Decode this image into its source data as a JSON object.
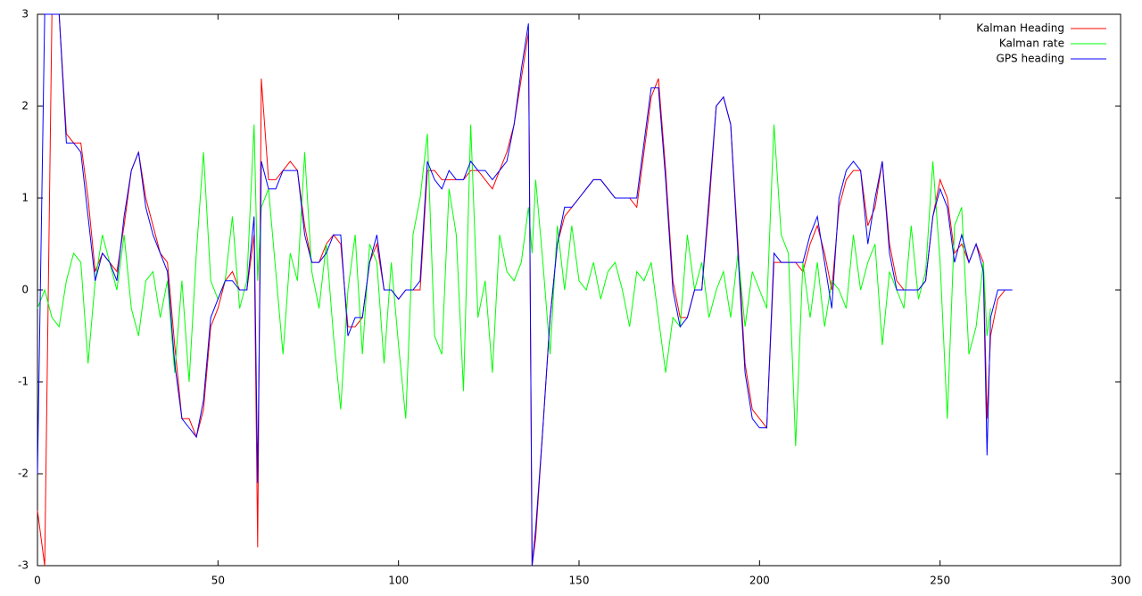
{
  "chart_data": {
    "type": "line",
    "x": [
      0,
      2,
      4,
      6,
      8,
      10,
      12,
      14,
      16,
      18,
      20,
      22,
      24,
      26,
      28,
      30,
      32,
      34,
      36,
      38,
      40,
      42,
      44,
      46,
      48,
      50,
      52,
      54,
      56,
      58,
      60,
      61,
      62,
      64,
      66,
      68,
      70,
      72,
      74,
      76,
      78,
      80,
      82,
      84,
      86,
      88,
      90,
      92,
      94,
      96,
      98,
      100,
      102,
      104,
      106,
      108,
      110,
      112,
      114,
      116,
      118,
      120,
      122,
      124,
      126,
      128,
      130,
      132,
      134,
      136,
      137,
      138,
      140,
      142,
      144,
      146,
      148,
      150,
      152,
      154,
      156,
      158,
      160,
      162,
      164,
      166,
      168,
      170,
      172,
      174,
      176,
      178,
      180,
      182,
      184,
      186,
      188,
      190,
      192,
      194,
      196,
      198,
      200,
      202,
      204,
      206,
      208,
      210,
      212,
      214,
      216,
      218,
      220,
      222,
      224,
      226,
      228,
      230,
      232,
      234,
      236,
      238,
      240,
      242,
      244,
      246,
      248,
      250,
      252,
      254,
      256,
      258,
      260,
      262,
      263,
      264,
      266,
      268,
      270
    ],
    "series": [
      {
        "name": "Kalman Heading",
        "color": "#ff0000",
        "values": [
          -2.4,
          -3,
          3,
          3,
          1.7,
          1.6,
          1.6,
          1,
          0.2,
          0.4,
          0.3,
          0.2,
          0.7,
          1.3,
          1.5,
          1,
          0.7,
          0.4,
          0.3,
          -0.6,
          -1.4,
          -1.4,
          -1.6,
          -1.3,
          -0.4,
          -0.2,
          0.1,
          0.2,
          0,
          0,
          0.6,
          -2.8,
          2.3,
          1.2,
          1.2,
          1.3,
          1.4,
          1.3,
          0.7,
          0.3,
          0.3,
          0.5,
          0.6,
          0.5,
          -0.4,
          -0.4,
          -0.3,
          0.3,
          0.5,
          0,
          0,
          -0.1,
          0,
          0,
          0,
          1.3,
          1.3,
          1.2,
          1.2,
          1.2,
          1.2,
          1.3,
          1.3,
          1.2,
          1.1,
          1.3,
          1.5,
          1.8,
          2.3,
          2.8,
          -3,
          -2.7,
          -1.5,
          -0.3,
          0.5,
          0.8,
          0.9,
          1,
          1.1,
          1.2,
          1.2,
          1.1,
          1,
          1,
          1,
          0.9,
          1.5,
          2.1,
          2.3,
          1.3,
          0.1,
          -0.3,
          -0.3,
          0,
          0,
          0.9,
          2,
          2.1,
          1.8,
          0.5,
          -0.8,
          -1.3,
          -1.4,
          -1.5,
          0.3,
          0.3,
          0.3,
          0.3,
          0.2,
          0.5,
          0.7,
          0.4,
          0,
          0.9,
          1.2,
          1.3,
          1.3,
          0.7,
          0.9,
          1.4,
          0.5,
          0.1,
          0,
          0,
          0,
          0.1,
          0.8,
          1.2,
          1,
          0.4,
          0.5,
          0.3,
          0.5,
          0.3,
          -1.4,
          -0.5,
          -0.1,
          0,
          0
        ]
      },
      {
        "name": "Kalman rate",
        "color": "#00ff00",
        "values": [
          -0.2,
          0,
          -0.3,
          -0.4,
          0.1,
          0.4,
          0.3,
          -0.8,
          0.1,
          0.6,
          0.3,
          0,
          0.6,
          -0.2,
          -0.5,
          0.1,
          0.2,
          -0.3,
          0.1,
          -0.9,
          0.1,
          -1,
          0.4,
          1.5,
          0.1,
          -0.1,
          0.1,
          0.8,
          -0.2,
          0.1,
          1.8,
          0.1,
          0.9,
          1.1,
          0.2,
          -0.7,
          0.4,
          0.1,
          1.5,
          0.2,
          -0.2,
          0.5,
          -0.5,
          -1.3,
          0,
          0.6,
          -0.7,
          0.5,
          0.3,
          -0.8,
          0.3,
          -0.6,
          -1.4,
          0.6,
          1,
          1.7,
          -0.5,
          -0.7,
          1.1,
          0.6,
          -1.1,
          1.8,
          -0.3,
          0.1,
          -0.9,
          0.6,
          0.2,
          0.1,
          0.3,
          0.9,
          0.4,
          1.2,
          0.3,
          -0.7,
          0.7,
          0,
          0.7,
          0.1,
          0,
          0.3,
          -0.1,
          0.2,
          0.3,
          0,
          -0.4,
          0.2,
          0.1,
          0.3,
          -0.3,
          -0.9,
          -0.3,
          -0.4,
          0.6,
          0,
          0.3,
          -0.3,
          0,
          0.2,
          -0.3,
          0.4,
          -0.4,
          0.2,
          0,
          -0.2,
          1.8,
          0.6,
          0.4,
          -1.7,
          0.3,
          -0.3,
          0.3,
          -0.4,
          0.1,
          0,
          -0.2,
          0.6,
          0,
          0.3,
          0.5,
          -0.6,
          0.2,
          0,
          -0.2,
          0.7,
          -0.1,
          0.2,
          1.4,
          0.3,
          -1.4,
          0.7,
          0.9,
          -0.7,
          -0.4,
          0.3,
          -0.5,
          -0.2,
          null,
          null,
          null
        ]
      },
      {
        "name": "GPS heading",
        "color": "#0000ff",
        "values": [
          -2,
          3,
          3,
          3,
          1.6,
          1.6,
          1.5,
          0.8,
          0.1,
          0.4,
          0.3,
          0.1,
          0.8,
          1.3,
          1.5,
          0.9,
          0.6,
          0.4,
          0.2,
          -0.8,
          -1.4,
          -1.5,
          -1.6,
          -1.2,
          -0.3,
          -0.1,
          0.1,
          0.1,
          0,
          0,
          0.8,
          -2.1,
          1.4,
          1.1,
          1.1,
          1.3,
          1.3,
          1.3,
          0.6,
          0.3,
          0.3,
          0.4,
          0.6,
          0.6,
          -0.5,
          -0.3,
          -0.3,
          0.3,
          0.6,
          0,
          0,
          -0.1,
          0,
          0,
          0.1,
          1.4,
          1.2,
          1.1,
          1.3,
          1.2,
          1.2,
          1.4,
          1.3,
          1.3,
          1.2,
          1.3,
          1.4,
          1.8,
          2.4,
          2.9,
          -3,
          -2.6,
          -1.5,
          -0.3,
          0.5,
          0.9,
          0.9,
          1,
          1.1,
          1.2,
          1.2,
          1.1,
          1,
          1,
          1,
          1,
          1.6,
          2.2,
          2.2,
          1.2,
          0,
          -0.4,
          -0.3,
          0,
          0,
          1,
          2,
          2.1,
          1.8,
          0.4,
          -0.9,
          -1.4,
          -1.5,
          -1.5,
          0.4,
          0.3,
          0.3,
          0.3,
          0.3,
          0.6,
          0.8,
          0.3,
          -0.2,
          1,
          1.3,
          1.4,
          1.3,
          0.5,
          1,
          1.4,
          0.4,
          0,
          0,
          0,
          0,
          0.1,
          0.8,
          1.1,
          0.9,
          0.3,
          0.6,
          0.3,
          0.5,
          0.2,
          -1.8,
          -0.3,
          0,
          0,
          0
        ]
      }
    ],
    "xlim": [
      0,
      300
    ],
    "xticks": [
      0,
      50,
      100,
      150,
      200,
      250,
      300
    ],
    "ylim": [
      -3,
      3
    ],
    "yticks": [
      -3,
      -2,
      -1,
      0,
      1,
      2,
      3
    ],
    "legend": "top-right"
  }
}
